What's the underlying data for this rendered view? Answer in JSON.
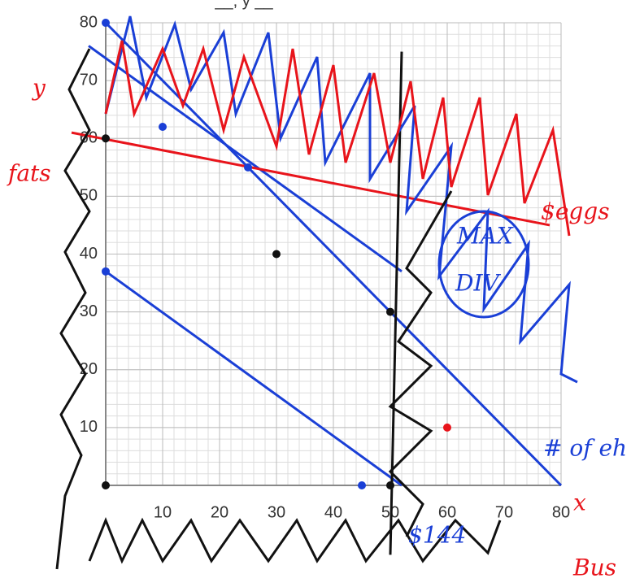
{
  "chart_data": {
    "type": "line",
    "title": "__, y __",
    "xlim": [
      0,
      80
    ],
    "ylim": [
      0,
      80
    ],
    "xticks": [
      10,
      20,
      30,
      40,
      50,
      60,
      70,
      80
    ],
    "yticks": [
      10,
      20,
      30,
      40,
      50,
      60,
      70,
      80
    ],
    "grid": true,
    "series": [
      {
        "color": "#1a3fd6",
        "x": [
          0,
          80
        ],
        "values": [
          80,
          0
        ]
      },
      {
        "color": "#1a3fd6",
        "x": [
          -3,
          52
        ],
        "values": [
          76,
          37
        ]
      },
      {
        "color": "#1a3fd6",
        "x": [
          0,
          52
        ],
        "values": [
          37,
          0
        ]
      },
      {
        "color": "#e8141b",
        "x": [
          -6,
          78
        ],
        "values": [
          61,
          45
        ]
      },
      {
        "color": "#111111",
        "x": [
          52,
          50
        ],
        "values": [
          75,
          -12
        ]
      }
    ],
    "scatter": [
      {
        "color": "#1a3fd6",
        "x": [
          0,
          10,
          25,
          0,
          45
        ],
        "y": [
          80,
          62,
          55,
          37,
          0
        ]
      },
      {
        "color": "#111111",
        "x": [
          0,
          30,
          50,
          50,
          0
        ],
        "y": [
          60,
          40,
          30,
          0,
          0
        ]
      },
      {
        "color": "#e8141b",
        "x": [
          60
        ],
        "y": [
          10
        ]
      }
    ],
    "annotations": [
      "y",
      "fats",
      "$eggs",
      "MAX",
      "DIV",
      "# of eh",
      "$144",
      "x",
      "Bus"
    ]
  }
}
